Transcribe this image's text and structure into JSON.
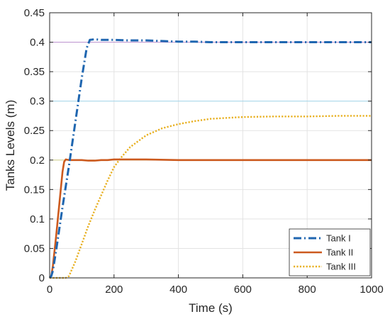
{
  "chart_data": {
    "type": "line",
    "xlabel": "Time (s)",
    "ylabel": "Tanks Levels (m)",
    "xlim": [
      0,
      1000
    ],
    "ylim": [
      0,
      0.45
    ],
    "grid": true,
    "legend_position": "bottom-right",
    "x_ticks": [
      {
        "value": 0,
        "label": "0"
      },
      {
        "value": 200,
        "label": "200"
      },
      {
        "value": 400,
        "label": "400"
      },
      {
        "value": 600,
        "label": "600"
      },
      {
        "value": 800,
        "label": "800"
      },
      {
        "value": 1000,
        "label": "1000"
      }
    ],
    "y_ticks": [
      {
        "value": 0,
        "label": "0"
      },
      {
        "value": 0.05,
        "label": "0.05"
      },
      {
        "value": 0.1,
        "label": "0.1"
      },
      {
        "value": 0.15,
        "label": "0.15"
      },
      {
        "value": 0.2,
        "label": "0.2"
      },
      {
        "value": 0.25,
        "label": "0.25"
      },
      {
        "value": 0.3,
        "label": "0.3"
      },
      {
        "value": 0.35,
        "label": "0.35"
      },
      {
        "value": 0.4,
        "label": "0.4"
      },
      {
        "value": 0.45,
        "label": "0.45"
      }
    ],
    "series": [
      {
        "name": "Tank I",
        "color": "#1f66b0",
        "style": "dash-dot",
        "x": [
          0,
          5,
          10,
          20,
          40,
          60,
          80,
          100,
          115,
          125,
          140,
          160,
          200,
          250,
          300,
          350,
          400,
          450,
          500,
          600,
          700,
          800,
          900,
          1000
        ],
        "y": [
          0,
          0.003,
          0.012,
          0.046,
          0.12,
          0.19,
          0.265,
          0.34,
          0.39,
          0.404,
          0.405,
          0.404,
          0.404,
          0.403,
          0.403,
          0.402,
          0.401,
          0.401,
          0.4,
          0.4,
          0.4,
          0.4,
          0.4,
          0.4
        ]
      },
      {
        "name": "Tank II",
        "color": "#cc5a1e",
        "style": "solid",
        "x": [
          0,
          5,
          10,
          20,
          30,
          40,
          45,
          50,
          60,
          80,
          100,
          120,
          140,
          160,
          180,
          200,
          250,
          300,
          400,
          500,
          600,
          700,
          800,
          900,
          1000
        ],
        "y": [
          0,
          0.003,
          0.02,
          0.07,
          0.125,
          0.18,
          0.197,
          0.201,
          0.2,
          0.2,
          0.2,
          0.199,
          0.199,
          0.2,
          0.2,
          0.201,
          0.201,
          0.201,
          0.2,
          0.2,
          0.2,
          0.2,
          0.2,
          0.2,
          0.2
        ]
      },
      {
        "name": "Tank III",
        "color": "#e8b021",
        "style": "dotted",
        "x": [
          0,
          40,
          50,
          60,
          80,
          100,
          120,
          140,
          160,
          180,
          200,
          220,
          250,
          300,
          350,
          400,
          450,
          500,
          600,
          700,
          800,
          900,
          1000
        ],
        "y": [
          0,
          0,
          0,
          0.003,
          0.028,
          0.058,
          0.088,
          0.115,
          0.14,
          0.165,
          0.188,
          0.203,
          0.222,
          0.242,
          0.254,
          0.261,
          0.266,
          0.27,
          0.273,
          0.274,
          0.274,
          0.275,
          0.275
        ]
      }
    ]
  }
}
